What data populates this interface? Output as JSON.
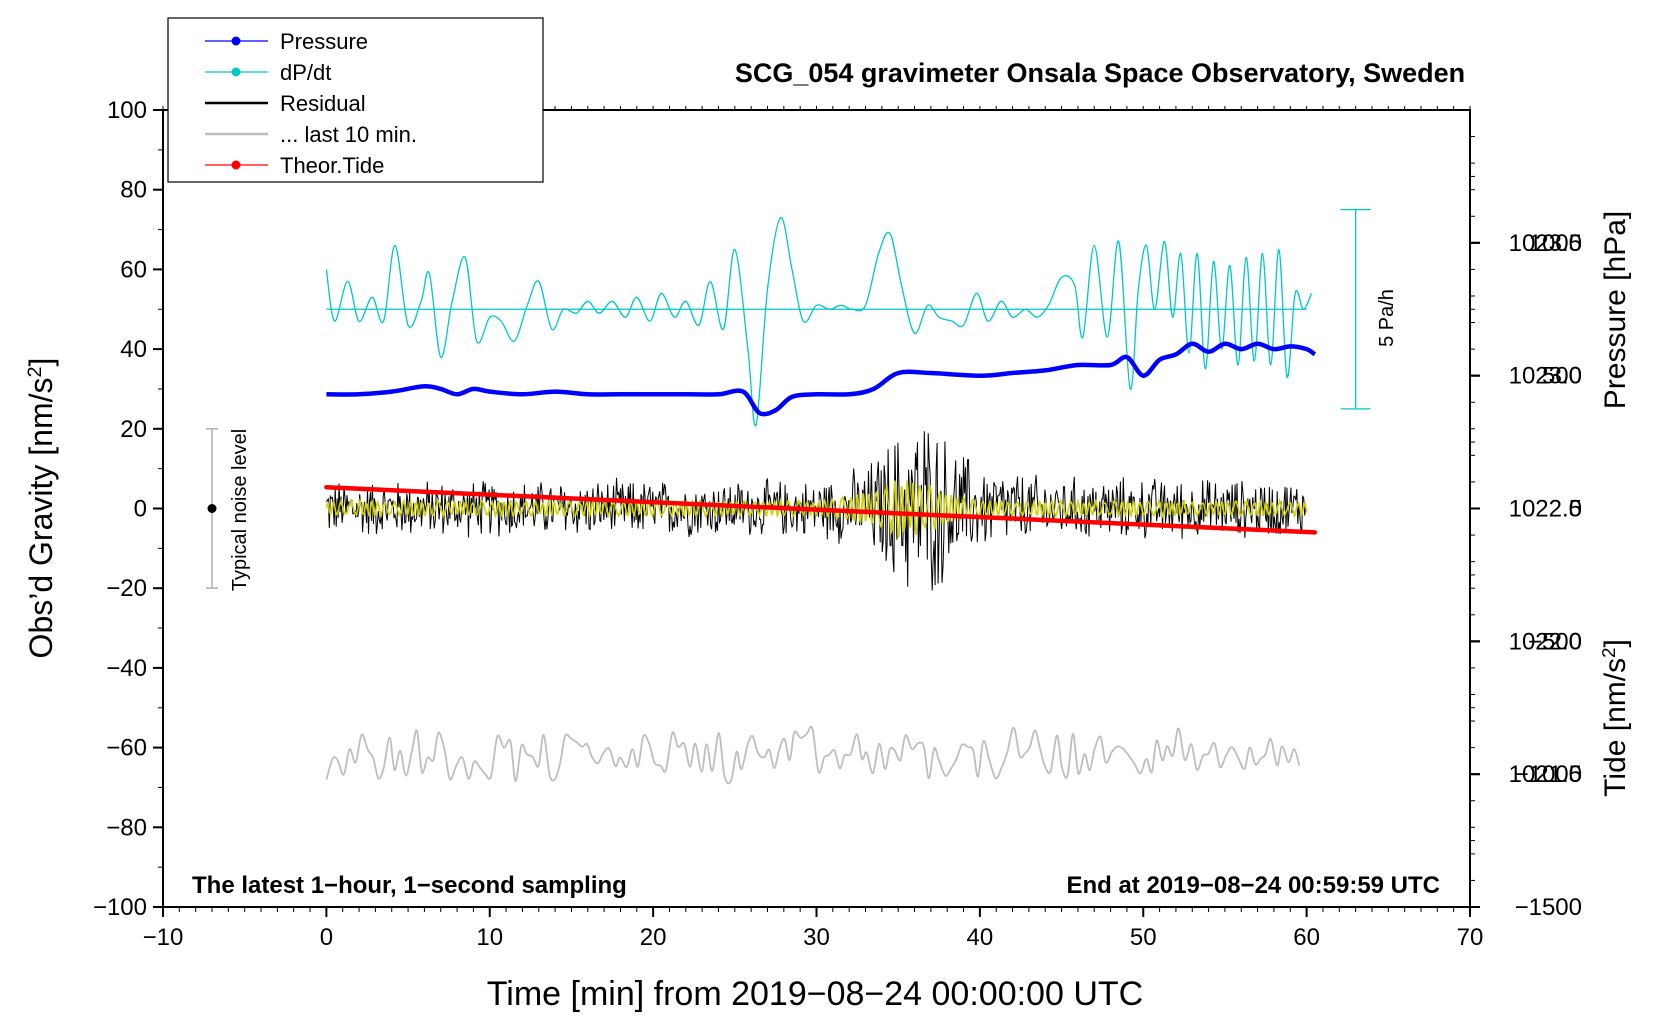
{
  "chart_data": {
    "type": "line",
    "title": "SCG_054 gravimeter Onsala Space Observatory, Sweden",
    "xlabel": "Time [min] from 2019−08−24 00:00:00 UTC",
    "ylabel_left": "Obs’d Gravity [nm/s²]",
    "ylabel_right_pressure": "Pressure [hPa]",
    "ylabel_right_tide": "Tide [nm/s²]",
    "xlim": [
      -10,
      70
    ],
    "ylim": [
      -100,
      100
    ],
    "pressure_axis_range": [
      1021.0,
      1024.0
    ],
    "tide_axis_range": [
      -1500,
      1500
    ],
    "x_ticks": [
      -10,
      0,
      10,
      20,
      30,
      40,
      50,
      60,
      70
    ],
    "x_tick_labels": [
      "−10",
      "0",
      "10",
      "20",
      "30",
      "40",
      "50",
      "60",
      "70"
    ],
    "y_ticks": [
      -100,
      -80,
      -60,
      -40,
      -20,
      0,
      20,
      40,
      60,
      80,
      100
    ],
    "y_tick_labels": [
      "−100",
      "−80",
      "−60",
      "−40",
      "−20",
      "0",
      "20",
      "40",
      "60",
      "80",
      "100"
    ],
    "pressure_ticks": [
      1021.5,
      1022.0,
      1022.5,
      1023.0,
      1023.5
    ],
    "pressure_tick_labels": [
      "1021.5",
      "1022.0",
      "1022.5",
      "1023.0",
      "1023.5"
    ],
    "tide_ticks": [
      -1500,
      -1000,
      -500,
      0,
      500,
      1000
    ],
    "tide_tick_labels": [
      "−1500",
      "−1000",
      "−500",
      "0",
      "500",
      "1000"
    ],
    "legend": {
      "position": "top-left",
      "entries": [
        {
          "label": "Pressure",
          "color": "#0000ff",
          "marker": true
        },
        {
          "label": "dP/dt",
          "color": "#00c8c8",
          "marker": true
        },
        {
          "label": "Residual",
          "color": "#000000",
          "marker": false
        },
        {
          "label": "... last 10 min.",
          "color": "#bebebe",
          "marker": false
        },
        {
          "label": "Theor.Tide",
          "color": "#ff0000",
          "marker": true
        }
      ]
    },
    "annotations": {
      "bottom_left": "The latest 1−hour, 1−second sampling",
      "bottom_right": "End at 2019−08−24 00:59:59 UTC",
      "noise_label": "Typical noise level",
      "noise_bar": {
        "x": -7,
        "center": 0,
        "low": -20,
        "high": 20
      },
      "dpdt_scale_label": "5 Pa/h",
      "dpdt_scale_bar": {
        "x": 63,
        "low": 25,
        "high": 75
      }
    },
    "series": [
      {
        "name": "Pressure",
        "axis": "pressure_hPa",
        "color": "#0000ff",
        "x": [
          0,
          2,
          4,
          6,
          7,
          8,
          9,
          10,
          12,
          14,
          16,
          18,
          20,
          22,
          24,
          25.5,
          26.5,
          27.5,
          28.5,
          30,
          32,
          33.5,
          35,
          37,
          40,
          42,
          44,
          46,
          48,
          49,
          50,
          51,
          52,
          53,
          54,
          55,
          56,
          57,
          58,
          59,
          60,
          60.5
        ],
        "values": [
          1022.93,
          1022.93,
          1022.94,
          1022.96,
          1022.95,
          1022.93,
          1022.95,
          1022.94,
          1022.93,
          1022.94,
          1022.93,
          1022.93,
          1022.93,
          1022.93,
          1022.93,
          1022.94,
          1022.86,
          1022.87,
          1022.92,
          1022.93,
          1022.93,
          1022.95,
          1023.01,
          1023.01,
          1023.0,
          1023.01,
          1023.02,
          1023.04,
          1023.04,
          1023.07,
          1023.0,
          1023.06,
          1023.08,
          1023.12,
          1023.09,
          1023.12,
          1023.1,
          1023.12,
          1023.1,
          1023.11,
          1023.1,
          1023.08
        ]
      },
      {
        "name": "dP/dt",
        "axis": "gravity_units_offset",
        "baseline": 50,
        "color": "#00c8c8",
        "x": [
          0,
          0.5,
          1.3,
          2,
          2.8,
          3.5,
          4.2,
          5,
          5.8,
          6.3,
          7,
          7.7,
          8.5,
          9.2,
          10,
          10.7,
          11.5,
          12.3,
          13,
          13.8,
          14.5,
          15.3,
          16,
          16.7,
          17.5,
          18.3,
          19,
          19.8,
          20.5,
          21.3,
          22,
          22.8,
          23.5,
          24.3,
          25,
          25.8,
          26.3,
          27,
          27.8,
          28.5,
          29.2,
          30,
          30.8,
          31.5,
          32.2,
          33,
          33.8,
          34.5,
          35.2,
          36,
          36.8,
          37.5,
          38.3,
          39,
          39.8,
          40.5,
          41.3,
          42,
          42.8,
          43.5,
          44.2,
          45,
          45.8,
          46.3,
          47,
          47.8,
          48.5,
          49.2,
          49.7,
          50.2,
          50.7,
          51.3,
          51.8,
          52.3,
          52.8,
          53.3,
          53.8,
          54.3,
          54.8,
          55.3,
          55.8,
          56.3,
          56.8,
          57.3,
          57.8,
          58.3,
          58.8,
          59.3,
          59.8,
          60.3
        ],
        "values": [
          60,
          47,
          57,
          47,
          53,
          47,
          66,
          46,
          52,
          59,
          38,
          52,
          63,
          42,
          48,
          47,
          42,
          51,
          57,
          45,
          50,
          49,
          52,
          49,
          52,
          48,
          53,
          47,
          54,
          48,
          52,
          46,
          57,
          45,
          65,
          40,
          21,
          55,
          73,
          60,
          47,
          51,
          50,
          51,
          50,
          51,
          64,
          69,
          56,
          44,
          51,
          48,
          47,
          46,
          54,
          47,
          52,
          48,
          50,
          48,
          51,
          58,
          56,
          43,
          66,
          43,
          67,
          30,
          55,
          66,
          50,
          67,
          48,
          64,
          39,
          64,
          35,
          62,
          40,
          61,
          36,
          63,
          37,
          64,
          36,
          65,
          33,
          54,
          50,
          54
        ]
      },
      {
        "name": "Residual",
        "axis": "gravity",
        "color": "#000000",
        "description_envelope": {
          "x": [
            0,
            30,
            33,
            35,
            36.5,
            38,
            40,
            44,
            60
          ],
          "amplitude": [
            8,
            8,
            12,
            22,
            28,
            20,
            12,
            9,
            8
          ]
        }
      },
      {
        "name": "Residual (smoothed)",
        "axis": "gravity",
        "color": "#d2d200",
        "description_envelope": {
          "x": [
            0,
            30,
            33,
            35,
            36.5,
            38,
            40,
            60
          ],
          "amplitude": [
            2,
            2,
            4,
            8,
            7,
            4,
            2,
            2
          ]
        }
      },
      {
        "name": "Theor.Tide",
        "axis": "tide_nm_s2",
        "color": "#ff0000",
        "x": [
          0,
          60.5
        ],
        "values": [
          80,
          -90
        ]
      },
      {
        "name": "... last 10 min.",
        "axis": "gravity",
        "color": "#bebebe",
        "baseline": -62,
        "amplitude": 8
      }
    ]
  }
}
